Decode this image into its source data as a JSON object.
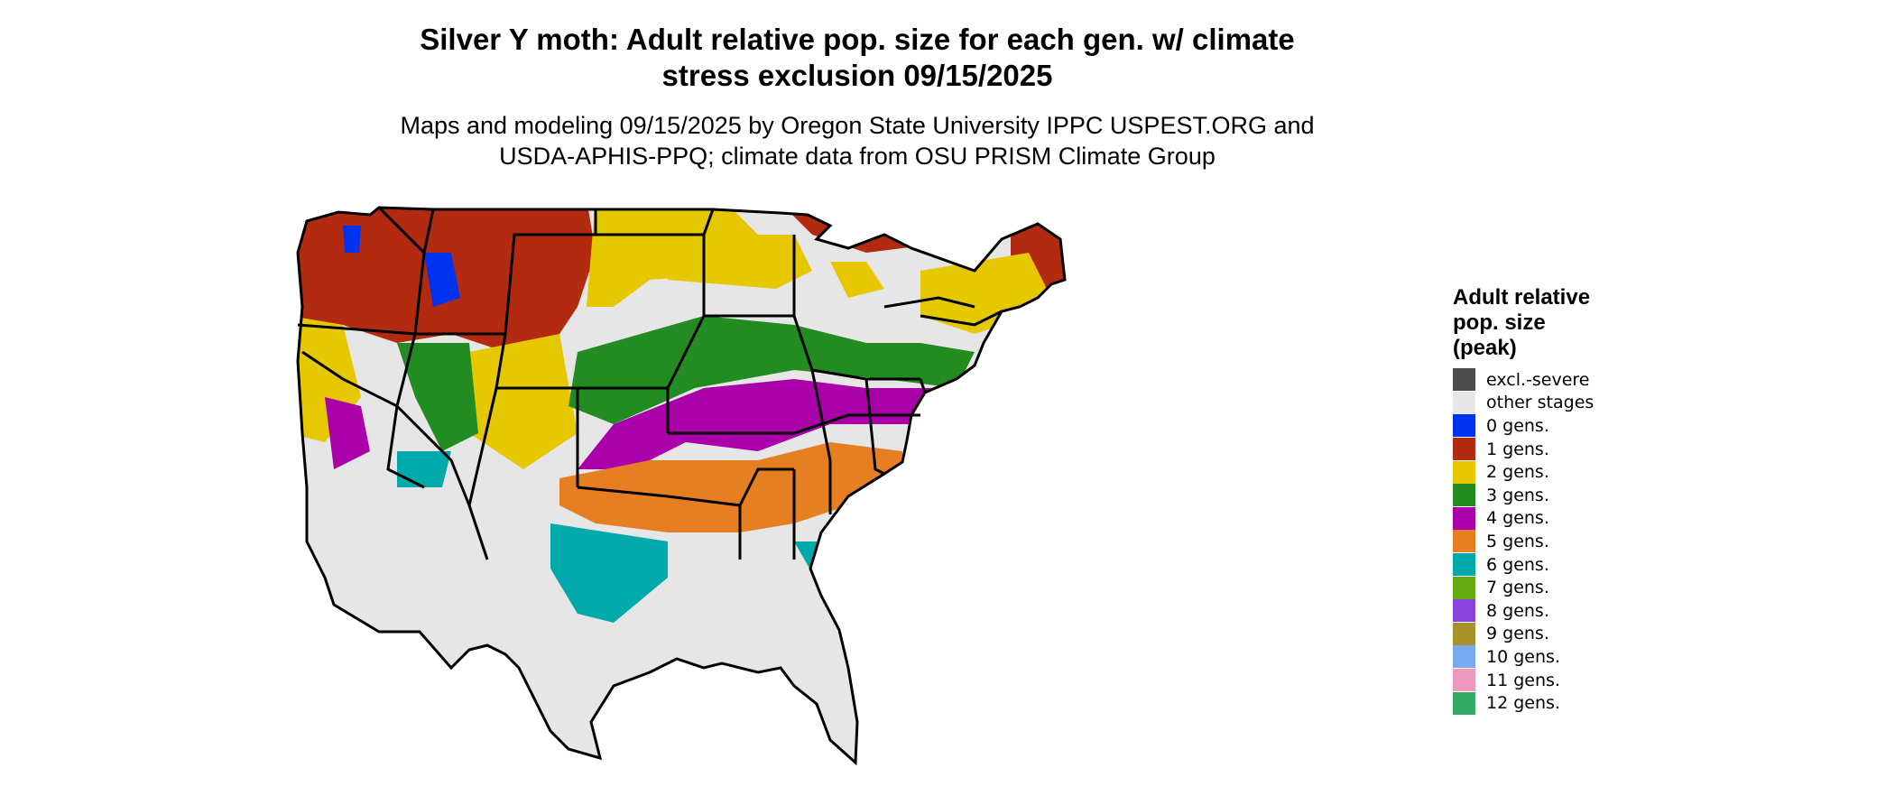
{
  "title_line1": "Silver Y moth: Adult relative pop. size for each gen. w/ climate",
  "title_line2": "stress exclusion 09/15/2025",
  "subtitle_line1": "Maps and modeling 09/15/2025 by Oregon State University IPPC USPEST.ORG and",
  "subtitle_line2": "USDA-APHIS-PPQ; climate data from OSU PRISM Climate Group",
  "legend": {
    "title_lines": [
      "Adult relative",
      "pop. size",
      "(peak)"
    ],
    "items": [
      {
        "label": "excl.-severe",
        "color": "#4d4d4d"
      },
      {
        "label": "other stages",
        "color": "#e6e6e6"
      },
      {
        "label": "0 gens.",
        "color": "#0033ee"
      },
      {
        "label": "1 gens.",
        "color": "#b22a10"
      },
      {
        "label": "2 gens.",
        "color": "#e6c800"
      },
      {
        "label": "3 gens.",
        "color": "#228b22"
      },
      {
        "label": "4 gens.",
        "color": "#aa00aa"
      },
      {
        "label": "5 gens.",
        "color": "#e67e22"
      },
      {
        "label": "6 gens.",
        "color": "#00aaaa"
      },
      {
        "label": "7 gens.",
        "color": "#66aa11"
      },
      {
        "label": "8 gens.",
        "color": "#8844dd"
      },
      {
        "label": "9 gens.",
        "color": "#a8902a"
      },
      {
        "label": "10 gens.",
        "color": "#77aaee"
      },
      {
        "label": "11 gens.",
        "color": "#ee99bb"
      },
      {
        "label": "12 gens.",
        "color": "#33aa66"
      }
    ]
  }
}
